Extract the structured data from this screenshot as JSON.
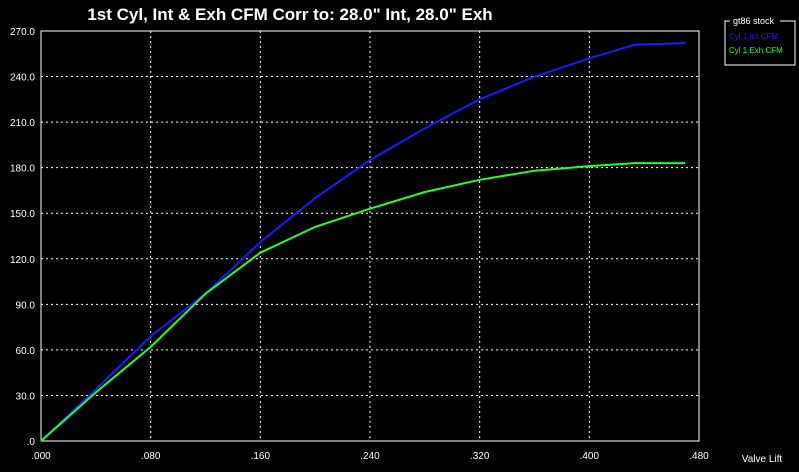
{
  "chart_data": {
    "type": "line",
    "title": "1st Cyl, Int & Exh CFM   Corr to: 28.0\" Int, 28.0\" Exh",
    "xlabel": "Valve Lift",
    "ylabel": "",
    "xlim": [
      0,
      0.48
    ],
    "ylim": [
      0,
      270
    ],
    "grid": true,
    "legend_position": "top-right",
    "legend_title": "gt86 stock",
    "x_tick_labels": [
      ".000",
      ".080",
      ".160",
      ".240",
      ".320",
      ".400",
      ".480"
    ],
    "x_ticks": [
      0,
      0.08,
      0.16,
      0.24,
      0.32,
      0.4,
      0.48
    ],
    "y_tick_labels": [
      ".0",
      "30.0",
      "60.0",
      "90.0",
      "120.0",
      "150.0",
      "180.0",
      "210.0",
      "240.0",
      "270.0"
    ],
    "y_ticks": [
      0,
      30,
      60,
      90,
      120,
      150,
      180,
      210,
      240,
      270
    ],
    "series": [
      {
        "name": "Cyl 1 Int CFM",
        "color": "#1a1aff",
        "x": [
          0,
          0.04,
          0.08,
          0.12,
          0.16,
          0.2,
          0.24,
          0.28,
          0.32,
          0.36,
          0.4,
          0.433,
          0.47
        ],
        "values": [
          0,
          34,
          69,
          97,
          131,
          160,
          185,
          206,
          225,
          240,
          252,
          261,
          262
        ]
      },
      {
        "name": "Cyl 1 Exh CFM",
        "color": "#22ff22",
        "x": [
          0,
          0.04,
          0.08,
          0.12,
          0.16,
          0.2,
          0.24,
          0.28,
          0.32,
          0.36,
          0.4,
          0.433,
          0.47
        ],
        "values": [
          0,
          32,
          62,
          97,
          124,
          141,
          153,
          164,
          172,
          178,
          181,
          183,
          183
        ]
      }
    ]
  }
}
